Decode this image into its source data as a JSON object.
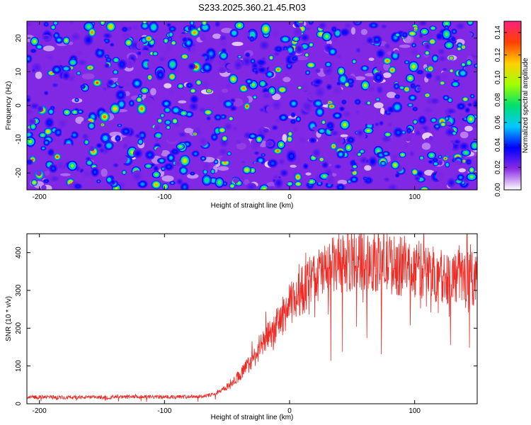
{
  "title": "S233.2025.360.21.45.R03",
  "chart_data": [
    {
      "type": "heatmap",
      "xlabel": "Height of straight line (km)",
      "ylabel": "Frequency (Hz)",
      "xlim": [
        -210,
        150
      ],
      "ylim": [
        -25,
        25
      ],
      "xticks": [
        -200,
        -100,
        0,
        100
      ],
      "yticks": [
        -20,
        -10,
        0,
        10,
        20
      ],
      "colorbar": {
        "label": "Normalized spectral amplitude",
        "range": [
          0,
          0.15
        ],
        "ticks": [
          "0.00",
          "0.02",
          "0.04",
          "0.06",
          "0.08",
          "0.10",
          "0.12",
          "0.14"
        ],
        "colors": [
          "#ffffff",
          "#8a2be2",
          "#0000ff",
          "#00c8ff",
          "#00e070",
          "#a0ff00",
          "#ffd000",
          "#ff4000",
          "#ff2080"
        ]
      },
      "description_values": {
        "background_level": 0.02,
        "typical_blob_level": 0.05,
        "max_level": 0.13
      }
    },
    {
      "type": "line",
      "xlabel": "Height of straight line (km)",
      "ylabel": "SNR (10 * v/v)",
      "xlim": [
        -210,
        150
      ],
      "ylim": [
        0,
        450
      ],
      "xticks": [
        -200,
        -100,
        0,
        100
      ],
      "yticks": [
        0,
        100,
        200,
        300,
        400
      ],
      "color": "#ee2a24",
      "x": [
        -210,
        -180,
        -150,
        -120,
        -90,
        -70,
        -60,
        -50,
        -40,
        -30,
        -20,
        -10,
        0,
        10,
        20,
        30,
        40,
        50,
        60,
        70,
        80,
        90,
        100,
        110,
        120,
        130,
        140,
        150
      ],
      "y": [
        18,
        17,
        17,
        18,
        18,
        20,
        25,
        45,
        75,
        115,
        165,
        210,
        260,
        300,
        335,
        355,
        372,
        380,
        382,
        378,
        370,
        362,
        358,
        350,
        340,
        335,
        338,
        330
      ]
    }
  ]
}
